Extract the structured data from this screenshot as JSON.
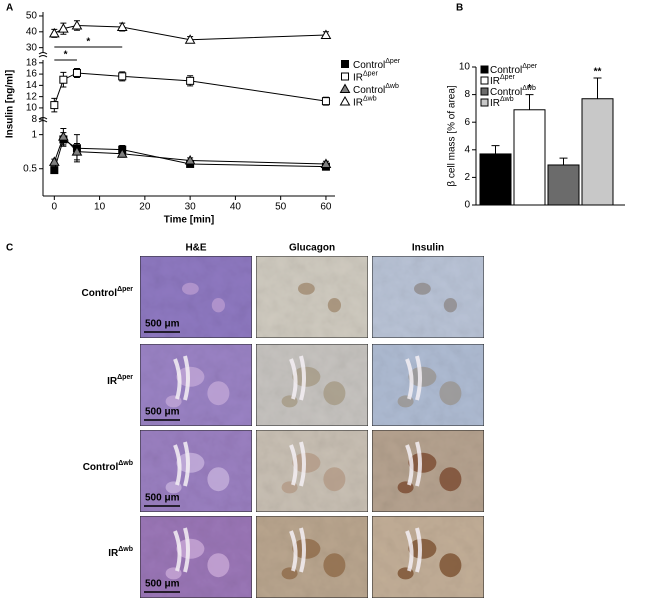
{
  "chart_data": [
    {
      "type": "line",
      "panel": "A",
      "ylabel": "Insulin [ng/ml]",
      "xlabel": "Time [min]",
      "x": [
        0,
        2,
        5,
        15,
        30,
        60
      ],
      "xlim": [
        -2.5,
        62
      ],
      "xticks": [
        0,
        10,
        20,
        30,
        40,
        50,
        60
      ],
      "y_segments": [
        {
          "ylim": [
            0.1,
            1.2
          ],
          "yticks": [
            0.5,
            1
          ]
        },
        {
          "ylim": [
            7.5,
            18.5
          ],
          "yticks": [
            8,
            10,
            12,
            14,
            16,
            18
          ]
        },
        {
          "ylim": [
            26,
            52.5
          ],
          "yticks": [
            30,
            40,
            50
          ]
        }
      ],
      "series": [
        {
          "name": "Control",
          "superscript": "Δper",
          "marker": "square",
          "color": "#000000",
          "values": [
            0.48,
            0.93,
            0.8,
            0.78,
            0.57,
            0.53
          ],
          "errors": [
            0.04,
            0.1,
            0.2,
            0.06,
            0.04,
            0.04
          ]
        },
        {
          "name": "IR",
          "superscript": "Δper",
          "marker": "square",
          "color": "#ffffff",
          "values": [
            10.5,
            15,
            16.2,
            15.6,
            14.8,
            11.2
          ],
          "errors": [
            1.2,
            1.3,
            0.8,
            0.8,
            0.9,
            0.7
          ]
        },
        {
          "name": "Control",
          "superscript": "Δwb",
          "marker": "triangle",
          "color": "#808080",
          "values": [
            0.6,
            0.97,
            0.75,
            0.72,
            0.62,
            0.57
          ],
          "errors": [
            0.04,
            0.12,
            0.12,
            0.05,
            0.04,
            0.04
          ]
        },
        {
          "name": "IR",
          "superscript": "Δwb",
          "marker": "triangle",
          "color": "#ffffff",
          "values": [
            39,
            42,
            44,
            43,
            35,
            38
          ],
          "errors": [
            2.5,
            3.5,
            3,
            2.5,
            2,
            2
          ]
        }
      ],
      "brackets": [
        {
          "label": "*",
          "from": 0,
          "to": 5
        },
        {
          "label": "*",
          "from": 0,
          "to": 15
        }
      ]
    },
    {
      "type": "bar",
      "panel": "B",
      "ylabel": "β cell mass [% of area]",
      "categories": [
        {
          "name": "Control",
          "superscript": "Δper"
        },
        {
          "name": "IR",
          "superscript": "Δper"
        },
        {
          "name": "Control",
          "superscript": "Δwb"
        },
        {
          "name": "IR",
          "superscript": "Δwb"
        }
      ],
      "colors": [
        "#000000",
        "#ffffff",
        "#6b6b6b",
        "#c8c8c8"
      ],
      "values": [
        3.7,
        6.9,
        2.9,
        7.7
      ],
      "errors": [
        0.6,
        1.1,
        0.5,
        1.5
      ],
      "significance": [
        null,
        "*",
        null,
        "**"
      ],
      "ylim": [
        0,
        10
      ],
      "yticks": [
        0,
        2,
        4,
        6,
        8,
        10
      ]
    }
  ],
  "panel_c": {
    "label": "C",
    "columns": [
      "H&E",
      "Glucagon",
      "Insulin"
    ],
    "rows": [
      {
        "name": "Control",
        "superscript": "Δper"
      },
      {
        "name": "IR",
        "superscript": "Δper"
      },
      {
        "name": "Control",
        "superscript": "Δwb"
      },
      {
        "name": "IR",
        "superscript": "Δwb"
      }
    ],
    "scale_bar": "500 μm"
  }
}
